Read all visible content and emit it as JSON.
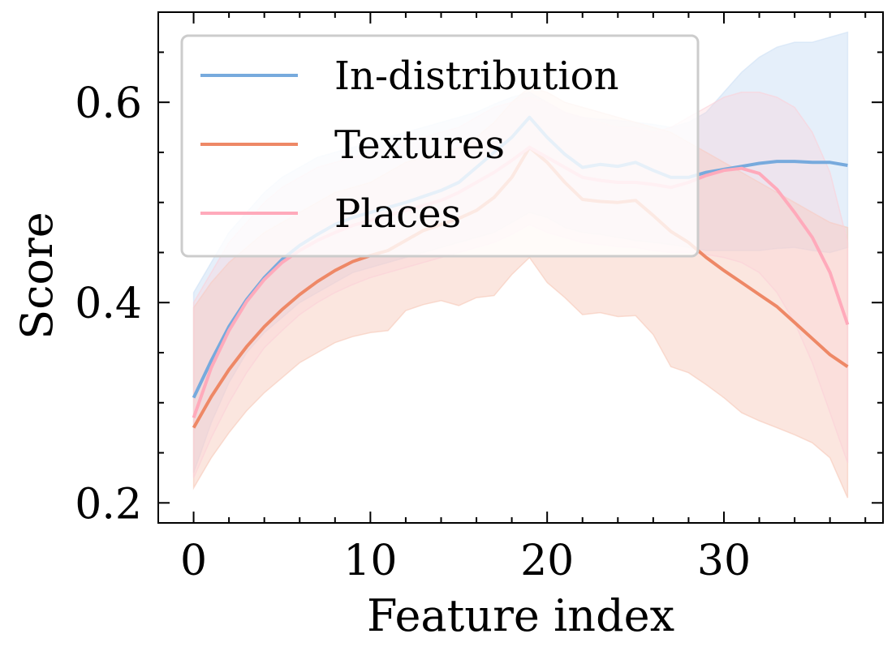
{
  "chart_data": {
    "type": "line",
    "xlabel": "Feature index",
    "ylabel": "Score",
    "xlim": [
      -2,
      39
    ],
    "ylim": [
      0.18,
      0.69
    ],
    "xticks": [
      0,
      10,
      20,
      30
    ],
    "xtick_labels": [
      "0",
      "10",
      "20",
      "30"
    ],
    "yticks": [
      0.2,
      0.4,
      0.6
    ],
    "ytick_labels": [
      "0.2",
      "0.4",
      "0.6"
    ],
    "grid": false,
    "legend_position": "top-left",
    "x": [
      0,
      1,
      2,
      3,
      4,
      5,
      6,
      7,
      8,
      9,
      10,
      11,
      12,
      13,
      14,
      15,
      16,
      17,
      18,
      19,
      20,
      21,
      22,
      23,
      24,
      25,
      26,
      27,
      28,
      29,
      30,
      31,
      32,
      33,
      34,
      35,
      36,
      37
    ],
    "series": [
      {
        "name": "In-distribution",
        "color": "#77aadd",
        "band_color": "#cfe1f5",
        "values": [
          0.305,
          0.342,
          0.376,
          0.403,
          0.425,
          0.443,
          0.457,
          0.468,
          0.478,
          0.485,
          0.49,
          0.495,
          0.5,
          0.506,
          0.512,
          0.52,
          0.535,
          0.55,
          0.565,
          0.585,
          0.565,
          0.548,
          0.535,
          0.538,
          0.536,
          0.54,
          0.532,
          0.525,
          0.525,
          0.53,
          0.533,
          0.536,
          0.539,
          0.541,
          0.541,
          0.54,
          0.54,
          0.537
        ],
        "upper": [
          0.41,
          0.44,
          0.47,
          0.49,
          0.51,
          0.525,
          0.535,
          0.545,
          0.55,
          0.555,
          0.56,
          0.565,
          0.57,
          0.575,
          0.58,
          0.585,
          0.59,
          0.598,
          0.605,
          0.61,
          0.6,
          0.59,
          0.585,
          0.583,
          0.582,
          0.58,
          0.578,
          0.575,
          0.58,
          0.59,
          0.61,
          0.63,
          0.645,
          0.655,
          0.66,
          0.66,
          0.665,
          0.67
        ],
        "lower": [
          0.23,
          0.28,
          0.32,
          0.35,
          0.37,
          0.385,
          0.4,
          0.41,
          0.42,
          0.43,
          0.435,
          0.44,
          0.445,
          0.45,
          0.455,
          0.46,
          0.465,
          0.47,
          0.48,
          0.49,
          0.485,
          0.475,
          0.47,
          0.468,
          0.465,
          0.462,
          0.46,
          0.458,
          0.455,
          0.452,
          0.452,
          0.452,
          0.452,
          0.454,
          0.455,
          0.452,
          0.45,
          0.455
        ]
      },
      {
        "name": "Textures",
        "color": "#ee8866",
        "band_color": "#f7c8b8",
        "values": [
          0.275,
          0.306,
          0.333,
          0.356,
          0.376,
          0.393,
          0.408,
          0.421,
          0.432,
          0.441,
          0.447,
          0.452,
          0.462,
          0.472,
          0.478,
          0.484,
          0.492,
          0.505,
          0.525,
          0.555,
          0.54,
          0.52,
          0.503,
          0.501,
          0.5,
          0.502,
          0.487,
          0.471,
          0.46,
          0.445,
          0.432,
          0.42,
          0.408,
          0.396,
          0.38,
          0.364,
          0.348,
          0.336
        ],
        "upper": [
          0.395,
          0.42,
          0.44,
          0.455,
          0.47,
          0.48,
          0.49,
          0.5,
          0.51,
          0.515,
          0.52,
          0.53,
          0.54,
          0.545,
          0.55,
          0.555,
          0.565,
          0.58,
          0.6,
          0.615,
          0.61,
          0.6,
          0.595,
          0.59,
          0.585,
          0.58,
          0.575,
          0.57,
          0.56,
          0.55,
          0.54,
          0.53,
          0.52,
          0.51,
          0.5,
          0.49,
          0.48,
          0.475
        ],
        "lower": [
          0.215,
          0.245,
          0.27,
          0.292,
          0.31,
          0.325,
          0.34,
          0.35,
          0.36,
          0.366,
          0.37,
          0.372,
          0.392,
          0.398,
          0.402,
          0.397,
          0.405,
          0.407,
          0.428,
          0.445,
          0.42,
          0.405,
          0.388,
          0.39,
          0.386,
          0.387,
          0.368,
          0.336,
          0.33,
          0.318,
          0.305,
          0.29,
          0.282,
          0.275,
          0.268,
          0.26,
          0.245,
          0.205
        ]
      },
      {
        "name": "Places",
        "color": "#ffaabb",
        "band_color": "#fbd0d8",
        "values": [
          0.285,
          0.335,
          0.372,
          0.401,
          0.423,
          0.44,
          0.452,
          0.462,
          0.47,
          0.477,
          0.482,
          0.487,
          0.492,
          0.497,
          0.502,
          0.51,
          0.52,
          0.53,
          0.542,
          0.555,
          0.545,
          0.535,
          0.525,
          0.522,
          0.52,
          0.52,
          0.518,
          0.515,
          0.52,
          0.527,
          0.532,
          0.534,
          0.529,
          0.513,
          0.49,
          0.465,
          0.43,
          0.378
        ],
        "upper": [
          0.4,
          0.43,
          0.46,
          0.48,
          0.5,
          0.515,
          0.525,
          0.535,
          0.54,
          0.545,
          0.55,
          0.555,
          0.56,
          0.565,
          0.57,
          0.575,
          0.585,
          0.595,
          0.6,
          0.605,
          0.6,
          0.59,
          0.585,
          0.58,
          0.575,
          0.575,
          0.57,
          0.575,
          0.585,
          0.595,
          0.605,
          0.61,
          0.61,
          0.605,
          0.595,
          0.57,
          0.53,
          0.46
        ],
        "lower": [
          0.225,
          0.265,
          0.3,
          0.33,
          0.355,
          0.372,
          0.388,
          0.4,
          0.41,
          0.418,
          0.425,
          0.43,
          0.435,
          0.44,
          0.445,
          0.45,
          0.455,
          0.46,
          0.468,
          0.478,
          0.47,
          0.465,
          0.46,
          0.458,
          0.456,
          0.455,
          0.452,
          0.45,
          0.45,
          0.448,
          0.445,
          0.44,
          0.43,
          0.41,
          0.38,
          0.34,
          0.29,
          0.24
        ]
      }
    ]
  }
}
